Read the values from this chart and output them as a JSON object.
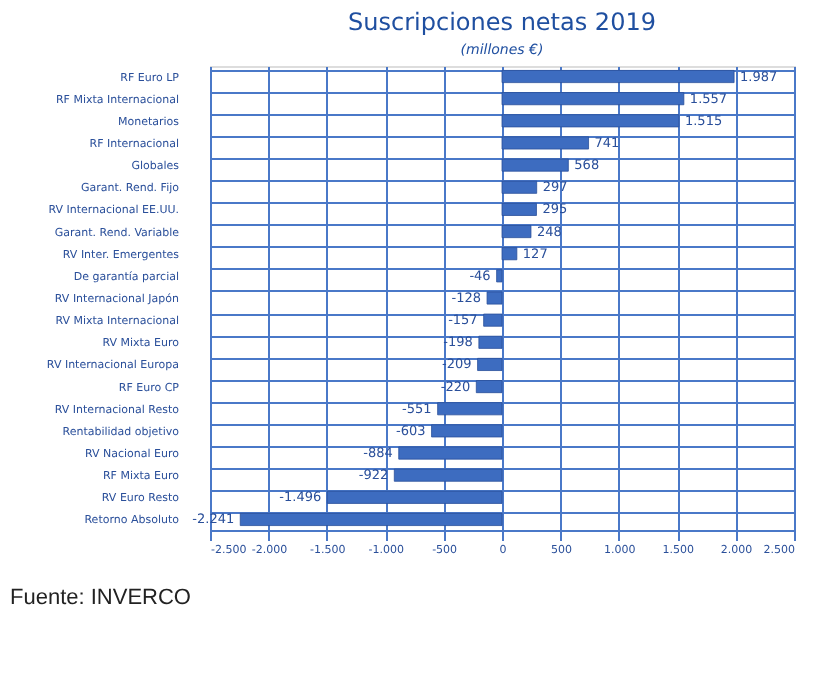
{
  "chart_data": {
    "type": "bar",
    "orientation": "horizontal",
    "title": "Suscripciones netas 2019",
    "subtitle": "(millones €)",
    "categories": [
      "RF Euro LP",
      "RF Mixta Internacional",
      "Monetarios",
      "RF Internacional",
      "Globales",
      "Garant. Rend. Fijo",
      "RV Internacional EE.UU.",
      "Garant. Rend. Variable",
      "RV Inter. Emergentes",
      "De garantía parcial",
      "RV Internacional Japón",
      "RV Mixta Internacional",
      "RV Mixta Euro",
      "RV Internacional Europa",
      "RF Euro CP",
      "RV Internacional Resto",
      "Rentabilidad objetivo",
      "RV Nacional Euro",
      "RF Mixta Euro",
      "RV Euro Resto",
      "Retorno Absoluto"
    ],
    "values": [
      1987,
      1557,
      1515,
      741,
      568,
      297,
      295,
      248,
      127,
      -46,
      -128,
      -157,
      -198,
      -209,
      -220,
      -551,
      -603,
      -884,
      -922,
      -1496,
      -2241
    ],
    "value_labels": [
      "1.987",
      "1.557",
      "1.515",
      "741",
      "568",
      "297",
      "295",
      "248",
      "127",
      "-46",
      "-128",
      "-157",
      "-198",
      "-209",
      "-220",
      "-551",
      "-603",
      "-884",
      "-922",
      "-1.496",
      "-2.241"
    ],
    "color": "#3d6cc0",
    "xlim": [
      -2500,
      2500
    ],
    "xticks": [
      {
        "value": -2500,
        "label": "-2.500"
      },
      {
        "value": -2000,
        "label": "-2.000"
      },
      {
        "value": -1500,
        "label": "-1.500"
      },
      {
        "value": -1000,
        "label": "-1.000"
      },
      -500,
      0,
      500,
      {
        "value": 1000,
        "label": "1.000"
      },
      {
        "value": 1500,
        "label": "1.500"
      },
      {
        "value": 2000,
        "label": "2.000"
      },
      {
        "value": 2500,
        "label": "2.500"
      }
    ],
    "grid": true,
    "annotations": [
      "Fuente: INVERCO"
    ]
  }
}
